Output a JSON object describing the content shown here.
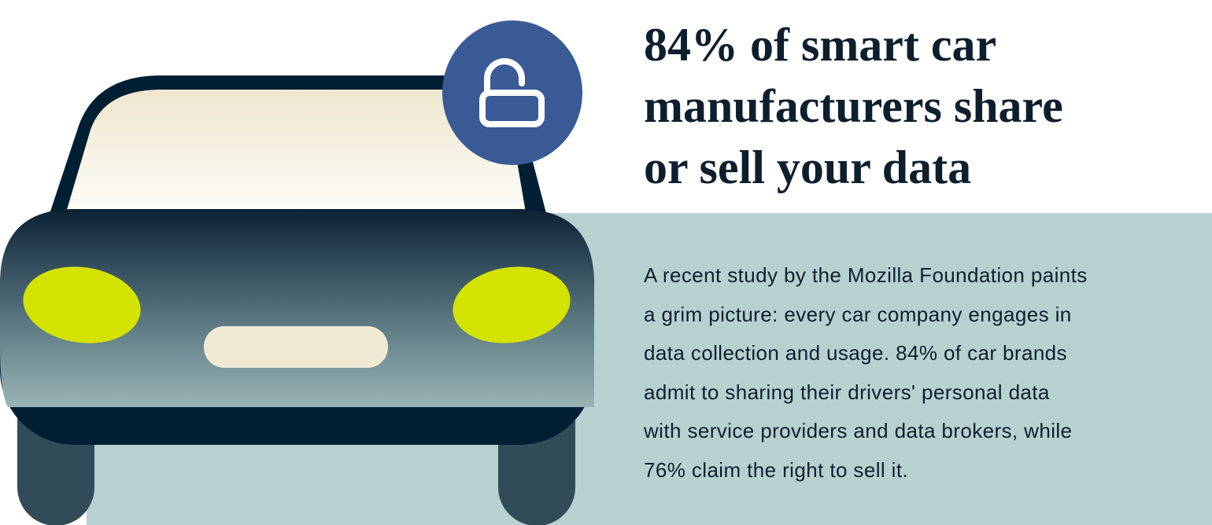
{
  "headline": {
    "lines": [
      "84% of smart car",
      "manufacturers share",
      "or sell your data"
    ]
  },
  "body": {
    "lines": [
      "A recent study by the Mozilla Foundation paints",
      "a grim picture: every car company engages in",
      "data collection and usage. 84% of car brands",
      "admit to sharing their drivers' personal data",
      "with service providers and data brokers, while",
      "76% claim the right to sell it."
    ]
  },
  "illustration": {
    "subject": "car-front",
    "badge_icon": "unlocked-padlock-icon"
  },
  "colors": {
    "text": "#0d1f2d",
    "panel": "#b7d1d1",
    "car_dark": "#001f33",
    "headlight": "#d4e200",
    "badge": "#3a5a96",
    "windshield": "#f0e9d4"
  }
}
